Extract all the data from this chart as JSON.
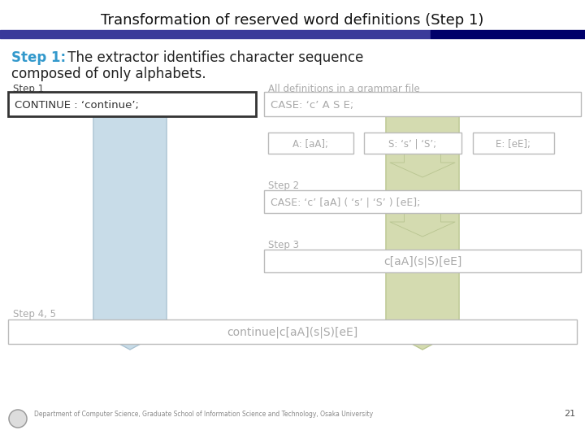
{
  "title": "Transformation of reserved word definitions (Step 1)",
  "title_fontsize": 13,
  "header_bar_color1": "#3a3a9a",
  "header_bar_color2": "#00006a",
  "step1_label": "Step 1:",
  "step1_color": "#3399cc",
  "step1_line1": " The extractor identifies character sequence",
  "step1_line2": "composed of only alphabets.",
  "step1_text_color": "#222222",
  "left_label": "Step 1",
  "right_label": "All definitions in a grammar file",
  "label_color": "#aaaaaa",
  "left_label_color": "#444444",
  "left_box_text": "CONTINUE : ‘continue’;",
  "right_box_text": "CASE: ‘c’ A S E;",
  "box_text_color": "#aaaaaa",
  "left_box_border": "#333333",
  "right_box_border": "#bbbbbb",
  "sub_boxes": [
    "A: [aA];",
    "S: ‘s’ | ‘S’;",
    "E: [eE];"
  ],
  "sub_box_border": "#bbbbbb",
  "sub_box_text_color": "#aaaaaa",
  "step2_label": "Step 2",
  "step2_box_text": "CASE: ‘c’ [aA] ( ‘s’ | ‘S’ ) [eE];",
  "step3_label": "Step 3",
  "step3_box_text": "c[aA](s|S)[eE]",
  "step45_label": "Step 4, 5",
  "final_box_text": "continue|c[aA](s|S)[eE]",
  "arrow_color_left": "#c8dce8",
  "arrow_color_right": "#d4dbb0",
  "arrow_border_left": "#a8c0d0",
  "arrow_border_right": "#b8c490",
  "footer_text": "Department of Computer Science, Graduate School of Information Science and Technology, Osaka University",
  "page_num": "21"
}
